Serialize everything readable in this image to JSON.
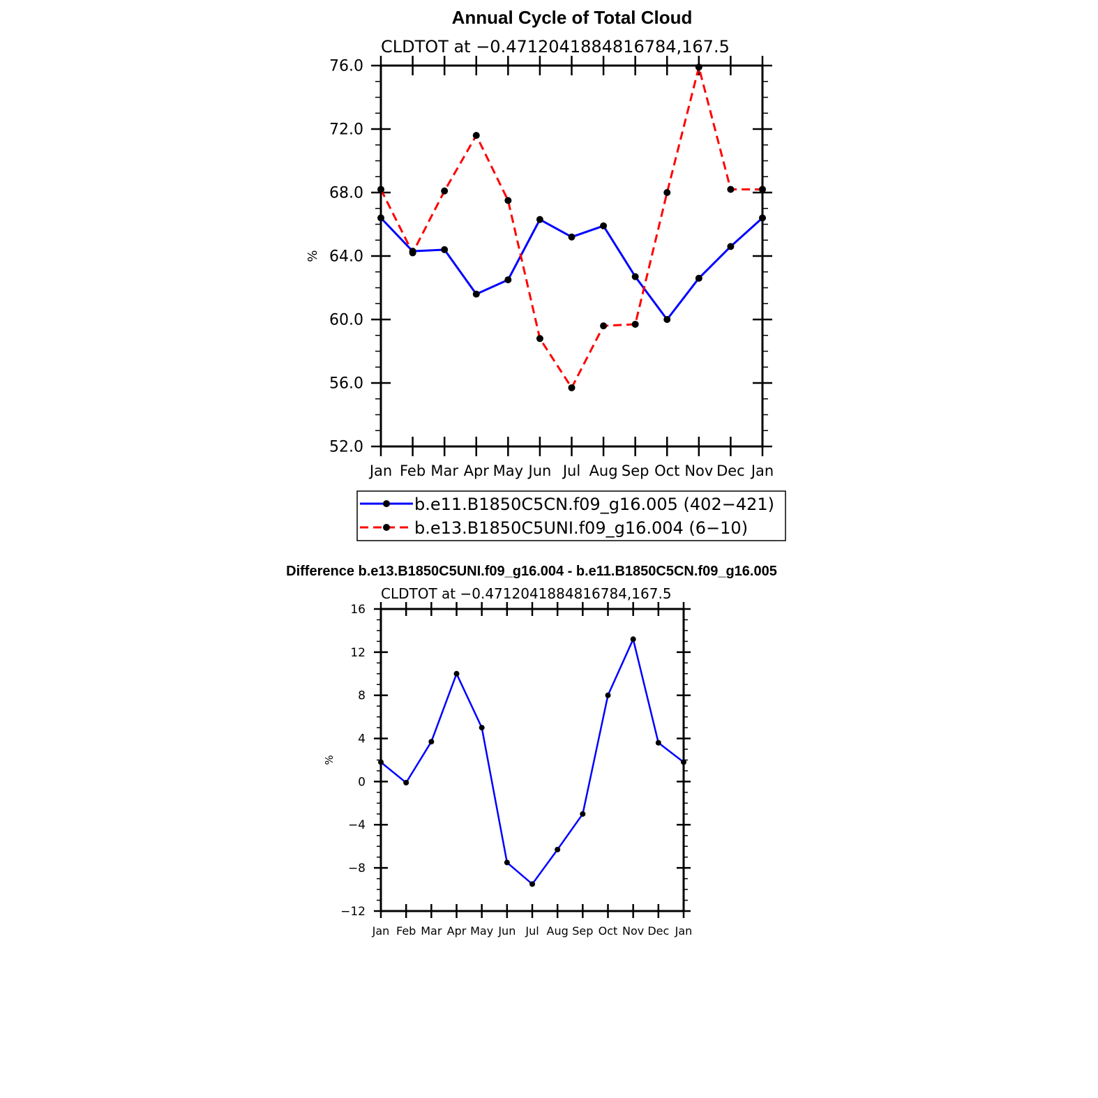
{
  "chart_data": [
    {
      "type": "line",
      "title": "Annual Cycle of Total Cloud",
      "subtitle": "CLDTOT at −0.4712041884816784,167.5",
      "ylabel": "%",
      "ylim": [
        52.0,
        76.0
      ],
      "yticks": [
        "52.0",
        "56.0",
        "60.0",
        "64.0",
        "68.0",
        "72.0",
        "76.0"
      ],
      "categories": [
        "Jan",
        "Feb",
        "Mar",
        "Apr",
        "May",
        "Jun",
        "Jul",
        "Aug",
        "Sep",
        "Oct",
        "Nov",
        "Dec",
        "Jan"
      ],
      "grid": false,
      "legend_position": "bottom",
      "series": [
        {
          "name": "b.e11.B1850C5CN.f09_g16.005 (402−421)",
          "color": "#0000ff",
          "style": "solid",
          "values": [
            66.4,
            64.3,
            64.4,
            61.6,
            62.5,
            66.3,
            65.2,
            65.9,
            62.7,
            60.0,
            62.6,
            64.6,
            66.4
          ]
        },
        {
          "name": "b.e13.B1850C5UNI.f09_g16.004 (6−10)",
          "color": "#ff0000",
          "style": "dashed",
          "values": [
            68.2,
            64.2,
            68.1,
            71.6,
            67.5,
            58.8,
            55.7,
            59.6,
            59.7,
            68.0,
            75.9,
            68.2,
            68.2
          ]
        }
      ]
    },
    {
      "type": "line",
      "title": "Difference b.e13.B1850C5UNI.f09_g16.004 - b.e11.B1850C5CN.f09_g16.005",
      "subtitle": "CLDTOT at −0.4712041884816784,167.5",
      "ylabel": "%",
      "ylim": [
        -12,
        16
      ],
      "yticks": [
        "−12",
        "−8",
        "−4",
        "0",
        "4",
        "8",
        "12",
        "16"
      ],
      "categories": [
        "Jan",
        "Feb",
        "Mar",
        "Apr",
        "May",
        "Jun",
        "Jul",
        "Aug",
        "Sep",
        "Oct",
        "Nov",
        "Dec",
        "Jan"
      ],
      "grid": false,
      "series": [
        {
          "color": "#0000ff",
          "style": "solid",
          "values": [
            1.8,
            -0.1,
            3.7,
            10.0,
            5.0,
            -7.5,
            -9.5,
            -6.3,
            -3.0,
            8.0,
            13.2,
            3.6,
            1.8
          ]
        }
      ]
    }
  ]
}
